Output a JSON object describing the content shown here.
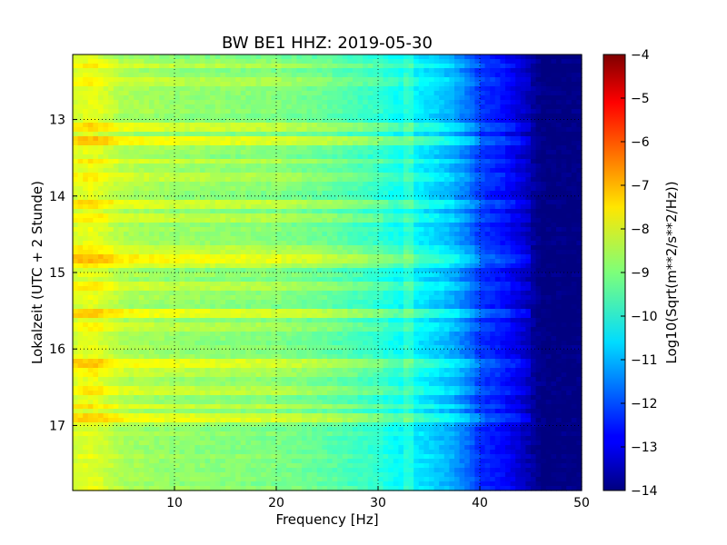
{
  "chart_data": {
    "type": "heatmap",
    "title": "BW BE1 HHZ: 2019-05-30",
    "xlabel": "Frequency [Hz]",
    "ylabel": "Lokalzeit (UTC + 2 Stunde)",
    "xlim": [
      0,
      50
    ],
    "ylim": [
      12.15,
      17.85
    ],
    "y_inverted": true,
    "x_ticks": [
      10,
      20,
      30,
      40,
      50
    ],
    "y_ticks": [
      13,
      14,
      15,
      16,
      17
    ],
    "grid": true,
    "colormap": "jet",
    "colorbar": {
      "label": "Log10(Sqrt(m**2/s**2/Hz))",
      "range": [
        -14,
        -4
      ],
      "ticks": [
        -4,
        -5,
        -6,
        -7,
        -8,
        -9,
        -10,
        -11,
        -12,
        -13,
        -14
      ]
    },
    "frequency_profile": {
      "frequency_hz": [
        0,
        2,
        5,
        10,
        15,
        20,
        25,
        30,
        32,
        33,
        35,
        37,
        39,
        40,
        42,
        44,
        45,
        46,
        50
      ],
      "level": [
        -8.2,
        -8.0,
        -8.6,
        -8.8,
        -8.9,
        -9.0,
        -9.3,
        -9.8,
        -10.2,
        -10.3,
        -10.6,
        -11.0,
        -11.7,
        -12.3,
        -12.6,
        -13.2,
        -13.6,
        -14.0,
        -14.0
      ]
    },
    "band_events": [
      {
        "time": 12.3,
        "level_offset": 0.5
      },
      {
        "time": 12.5,
        "level_offset": 0.4
      },
      {
        "time": 13.1,
        "level_offset": 0.6
      },
      {
        "time": 13.3,
        "level_offset": 0.9
      },
      {
        "time": 13.55,
        "level_offset": 0.5
      },
      {
        "time": 13.75,
        "level_offset": 0.4
      },
      {
        "time": 14.1,
        "level_offset": 0.6
      },
      {
        "time": 14.3,
        "level_offset": 0.5
      },
      {
        "time": 14.7,
        "level_offset": 0.6
      },
      {
        "time": 14.8,
        "level_offset": 1.0
      },
      {
        "time": 14.9,
        "level_offset": 0.6
      },
      {
        "time": 15.2,
        "level_offset": 0.5
      },
      {
        "time": 15.55,
        "level_offset": 0.9
      },
      {
        "time": 15.7,
        "level_offset": 0.4
      },
      {
        "time": 16.2,
        "level_offset": 0.8
      },
      {
        "time": 16.3,
        "level_offset": 0.4
      },
      {
        "time": 16.55,
        "level_offset": 0.5
      },
      {
        "time": 16.75,
        "level_offset": 0.6
      },
      {
        "time": 16.9,
        "level_offset": 0.8
      }
    ]
  }
}
